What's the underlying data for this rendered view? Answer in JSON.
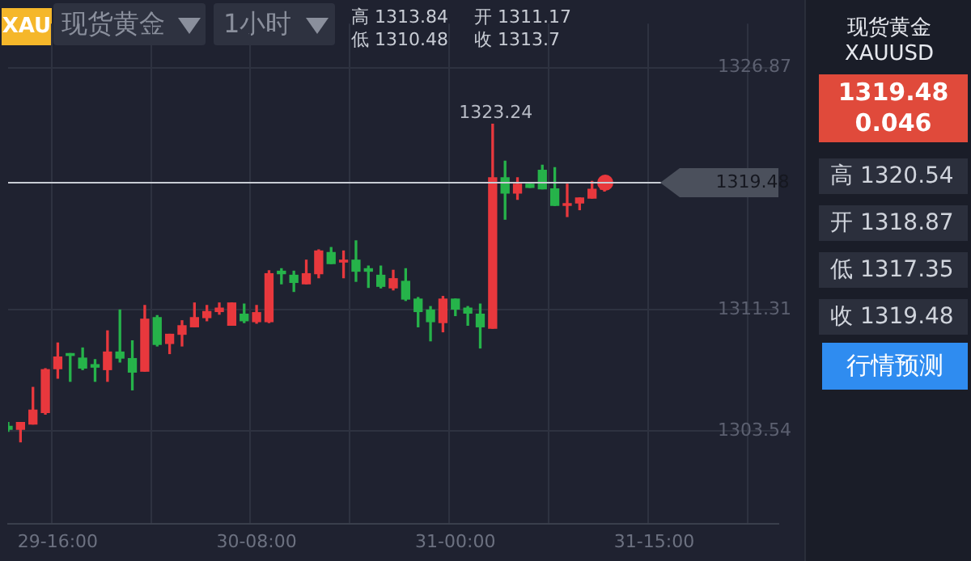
{
  "chart_data": {
    "type": "candlestick",
    "title": "现货黄金",
    "subtitle": "XAUUSD",
    "categories": [
      null,
      null,
      null,
      null,
      "29-16:00",
      null,
      null,
      null,
      null,
      null,
      null,
      null,
      null,
      null,
      null,
      null,
      null,
      null,
      null,
      null,
      "30-08:00",
      null,
      null,
      null,
      null,
      null,
      null,
      null,
      null,
      null,
      null,
      null,
      null,
      null,
      null,
      null,
      "31-00:00",
      null,
      null,
      null,
      null,
      null,
      null,
      null,
      null,
      null,
      null,
      null,
      null,
      null,
      null,
      null,
      "31-15:00",
      null,
      null,
      null,
      null,
      null,
      null,
      null,
      null,
      null,
      null
    ],
    "ohlc": [
      [
        1303.84,
        1304.08,
        1303.52,
        1303.65
      ],
      [
        1303.65,
        1304.08,
        1302.84,
        1304.08
      ],
      [
        1303.98,
        1306.34,
        1303.98,
        1304.88
      ],
      [
        1304.72,
        1307.54,
        1304.62,
        1307.48
      ],
      [
        1307.54,
        1309.19,
        1306.93,
        1308.29
      ],
      [
        1308.51,
        1308.51,
        1306.73,
        1308.39
      ],
      [
        1308.22,
        1308.87,
        1307.48,
        1307.58
      ],
      [
        1307.8,
        1308.12,
        1306.73,
        1307.64
      ],
      [
        1307.48,
        1309.97,
        1306.73,
        1308.61
      ],
      [
        1308.61,
        1311.31,
        1307.97,
        1308.22
      ],
      [
        1308.19,
        1309.33,
        1306.18,
        1307.32
      ],
      [
        1307.38,
        1311.6,
        1307.38,
        1310.72
      ],
      [
        1310.82,
        1310.95,
        1309.0,
        1309.1
      ],
      [
        1309.16,
        1309.75,
        1308.51,
        1309.75
      ],
      [
        1309.75,
        1310.62,
        1309.0,
        1310.3
      ],
      [
        1310.23,
        1311.76,
        1310.23,
        1310.82
      ],
      [
        1310.82,
        1311.6,
        1310.62,
        1311.21
      ],
      [
        1311.21,
        1311.76,
        1311.04,
        1311.43
      ],
      [
        1310.33,
        1311.76,
        1310.33,
        1311.76
      ],
      [
        1311.04,
        1311.69,
        1310.5,
        1310.62
      ],
      [
        1310.56,
        1311.6,
        1310.46,
        1311.14
      ],
      [
        1310.56,
        1313.83,
        1310.5,
        1313.64
      ],
      [
        1313.8,
        1313.96,
        1312.99,
        1313.64
      ],
      [
        1313.54,
        1313.8,
        1312.5,
        1313.08
      ],
      [
        1312.99,
        1314.51,
        1312.99,
        1313.64
      ],
      [
        1313.64,
        1315.17,
        1313.38,
        1315.1
      ],
      [
        1315.0,
        1315.32,
        1314.29,
        1314.29
      ],
      [
        1314.39,
        1315.1,
        1313.38,
        1314.51
      ],
      [
        1314.51,
        1315.75,
        1313.15,
        1313.8
      ],
      [
        1313.96,
        1314.13,
        1312.76,
        1313.8
      ],
      [
        1313.54,
        1314.13,
        1312.73,
        1312.83
      ],
      [
        1312.73,
        1313.86,
        1312.6,
        1313.32
      ],
      [
        1313.15,
        1313.96,
        1311.92,
        1312.01
      ],
      [
        1312.01,
        1312.11,
        1310.23,
        1311.21
      ],
      [
        1311.31,
        1311.53,
        1309.33,
        1310.56
      ],
      [
        1310.5,
        1312.18,
        1309.91,
        1312.01
      ],
      [
        1312.01,
        1312.01,
        1310.95,
        1311.37
      ],
      [
        1311.43,
        1311.53,
        1310.33,
        1311.11
      ],
      [
        1311.04,
        1311.69,
        1308.87,
        1310.23
      ],
      [
        1310.14,
        1323.24,
        1310.14,
        1319.8
      ],
      [
        1319.8,
        1320.87,
        1317.14,
        1318.82
      ],
      [
        1318.82,
        1319.8,
        1318.41,
        1319.38
      ],
      [
        1319.38,
        1319.38,
        1319.18,
        1319.18
      ],
      [
        1320.28,
        1320.61,
        1319.09,
        1319.09
      ],
      [
        1319.09,
        1320.45,
        1318.02,
        1318.02
      ],
      [
        1318.02,
        1319.38,
        1317.31,
        1318.14
      ],
      [
        1318.18,
        1318.5,
        1317.75,
        1318.5
      ],
      [
        1318.5,
        1319.57,
        1318.5,
        1319.06
      ],
      [
        1319.06,
        1319.6,
        1318.95,
        1319.48
      ],
      null,
      null,
      null,
      null,
      null,
      null,
      null,
      null,
      null,
      null,
      null,
      null,
      null,
      null
    ],
    "colors": [
      "#26b34a",
      "#e8383d",
      "#e8383d",
      "#e8383d",
      "#e8383d",
      "#26b34a",
      "#26b34a",
      "#26b34a",
      "#e8383d",
      "#26b34a",
      "#26b34a",
      "#e8383d",
      "#26b34a",
      "#e8383d",
      "#e8383d",
      "#e8383d",
      "#e8383d",
      "#e8383d",
      "#e8383d",
      "#26b34a",
      "#e8383d",
      "#e8383d",
      "#26b34a",
      "#26b34a",
      "#e8383d",
      "#e8383d",
      "#26b34a",
      "#e8383d",
      "#26b34a",
      "#26b34a",
      "#26b34a",
      "#e8383d",
      "#26b34a",
      "#26b34a",
      "#26b34a",
      "#e8383d",
      "#26b34a",
      "#26b34a",
      "#26b34a",
      "#e8383d",
      "#26b34a",
      "#e8383d",
      "#26b34a",
      "#26b34a",
      "#26b34a",
      "#e8383d",
      "#e8383d",
      "#e8383d",
      "#e8383d",
      null,
      null,
      null,
      null,
      null,
      null,
      null,
      null,
      null,
      null,
      null,
      null,
      null,
      null
    ],
    "ylim": [
      1297.6,
      1329.7
    ],
    "yticks": [
      1303.54,
      1311.31,
      1326.87
    ],
    "grid": true,
    "ref_lines": [
      {
        "axis": "y",
        "value": 1319.48,
        "label": "1319.48",
        "color": "#c8ccd4"
      }
    ],
    "annotations": [
      "XAU",
      "现货黄金",
      "1小时",
      "高 1313.84",
      "低 1310.48",
      "开 1311.17",
      "收 1313.7",
      "1319.48",
      "0.046",
      "高 1320.54",
      "开 1318.87",
      "低 1317.35",
      "收 1319.48",
      "行情预测",
      {
        "text": "1323.24",
        "y": 1323.24
      }
    ]
  }
}
